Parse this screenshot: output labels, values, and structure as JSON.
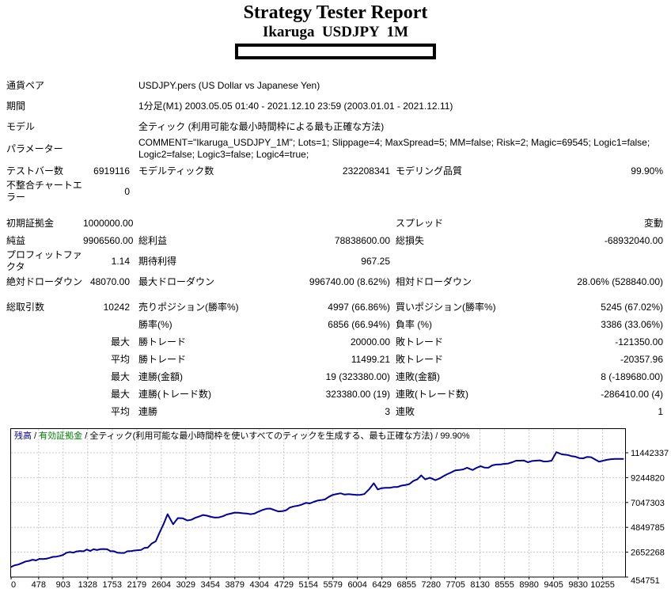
{
  "title": "Strategy Tester Report",
  "subtitle": "Ikaruga  USDJPY  1M",
  "table": {
    "info_rows": [
      {
        "label": "通貨ペア",
        "value": "USDJPY.pers (US Dollar vs Japanese Yen)"
      },
      {
        "label": "期間",
        "value": "1分足(M1) 2003.05.05 01:40 - 2021.12.10 23:59 (2003.01.01 - 2021.12.11)"
      },
      {
        "label": "モデル",
        "value": "全ティック (利用可能な最小時間枠による最も正確な方法)"
      },
      {
        "label": "パラメーター",
        "value": "COMMENT=\"Ikaruga_USDJPY_1M\"; Lots=1; Slippage=4; MaxSpread=5; MM=false; Risk=2; Magic=69545; Logic1=false; Logic2=false; Logic3=false; Logic4=true;"
      }
    ],
    "block1": [
      {
        "cells": [
          "テストバー数",
          "6919116",
          "モデルティック数",
          "232208341",
          "モデリング品質",
          "99.90%"
        ]
      },
      {
        "cells": [
          "不整合チャートエラー",
          "0",
          "",
          "",
          "",
          ""
        ]
      }
    ],
    "block2": [
      {
        "cells": [
          "初期証拠金",
          "1000000.00",
          "",
          "",
          "スプレッド",
          "変動"
        ]
      },
      {
        "cells": [
          "純益",
          "9906560.00",
          "総利益",
          "78838600.00",
          "総損失",
          "-68932040.00"
        ]
      },
      {
        "cells": [
          "プロフィットファクタ",
          "1.14",
          "期待利得",
          "967.25",
          "",
          ""
        ]
      },
      {
        "cells": [
          "絶対ドローダウン",
          "48070.00",
          "最大ドローダウン",
          "996740.00 (8.62%)",
          "相対ドローダウン",
          "28.06% (528840.00)"
        ]
      }
    ],
    "block3": [
      {
        "cells": [
          "総取引数",
          "10242",
          "売りポジション(勝率%)",
          "4997 (66.86%)",
          "買いポジション(勝率%)",
          "5245 (67.02%)"
        ]
      },
      {
        "cells": [
          "",
          "",
          "勝率(%)",
          "6856 (66.94%)",
          "負率 (%)",
          "3386 (33.06%)"
        ]
      },
      {
        "cells": [
          "",
          "最大",
          "勝トレード",
          "20000.00",
          "敗トレード",
          "-121350.00"
        ]
      },
      {
        "cells": [
          "",
          "平均",
          "勝トレード",
          "11499.21",
          "敗トレード",
          "-20357.96"
        ]
      },
      {
        "cells": [
          "",
          "最大",
          "連勝(金額)",
          "19 (323380.00)",
          "連敗(金額)",
          "8 (-189680.00)"
        ]
      },
      {
        "cells": [
          "",
          "最大",
          "連勝(トレード数)",
          "323380.00 (19)",
          "連敗(トレード数)",
          "-286410.00 (4)"
        ]
      },
      {
        "cells": [
          "",
          "平均",
          "連勝",
          "3",
          "連敗",
          "1"
        ]
      }
    ]
  },
  "chart_data": {
    "type": "line",
    "title": "残高 / 有効証拠金 / 全ティック(利用可能な最小時間枠を使いすべてのティックを生成する、最も正確な方法) / 99.90%",
    "header": {
      "balance_label": "残高",
      "equity_label": "有効証拠金",
      "model_label": "全ティック(利用可能な最小時間枠を使いすべてのティックを生成する、最も正確な方法)",
      "quality": "99.90%",
      "separator": " / "
    },
    "colors": {
      "balance_line": "#000099",
      "equity_label": "#008000",
      "grid": "#c9c9c9",
      "border": "#000000",
      "text": "#000000",
      "background": "#ffffff"
    },
    "xlabel": "",
    "ylabel": "",
    "x_ticks": [
      0,
      478,
      903,
      1328,
      1753,
      2179,
      2604,
      3029,
      3454,
      3879,
      4304,
      4729,
      5154,
      5579,
      6004,
      6429,
      6855,
      7280,
      7705,
      8130,
      8555,
      8980,
      9405,
      9830,
      10255
    ],
    "y_ticks": [
      454751,
      2652268,
      4849785,
      7047303,
      9244820,
      11442337
    ],
    "x_range": [
      0,
      10680
    ],
    "y_range": [
      454751,
      12150000
    ],
    "grid": true,
    "legend_position": "top-left-inline",
    "series": [
      {
        "name": "残高",
        "points": [
          [
            0,
            1350000
          ],
          [
            315,
            1890000
          ],
          [
            726,
            2240000
          ],
          [
            1137,
            2720000
          ],
          [
            1548,
            2920000
          ],
          [
            1959,
            2580000
          ],
          [
            2370,
            3060000
          ],
          [
            2507,
            3610000
          ],
          [
            2713,
            6010000
          ],
          [
            2809,
            5120000
          ],
          [
            2891,
            5670000
          ],
          [
            3055,
            5460000
          ],
          [
            3329,
            5940000
          ],
          [
            3603,
            5730000
          ],
          [
            3877,
            6150000
          ],
          [
            4151,
            6010000
          ],
          [
            4425,
            6490000
          ],
          [
            4699,
            6280000
          ],
          [
            4973,
            6760000
          ],
          [
            5247,
            7100000
          ],
          [
            5439,
            7310000
          ],
          [
            5576,
            7720000
          ],
          [
            5713,
            7860000
          ],
          [
            5850,
            7790000
          ],
          [
            5987,
            7720000
          ],
          [
            6124,
            7790000
          ],
          [
            6288,
            8750000
          ],
          [
            6357,
            8200000
          ],
          [
            6494,
            8340000
          ],
          [
            6631,
            8410000
          ],
          [
            6768,
            8540000
          ],
          [
            6905,
            8680000
          ],
          [
            7042,
            9090000
          ],
          [
            7110,
            9440000
          ],
          [
            7179,
            9090000
          ],
          [
            7261,
            9230000
          ],
          [
            7357,
            9020000
          ],
          [
            7494,
            9370000
          ],
          [
            7631,
            9710000
          ],
          [
            7768,
            9920000
          ],
          [
            7905,
            10120000
          ],
          [
            8001,
            9920000
          ],
          [
            8138,
            10260000
          ],
          [
            8275,
            10120000
          ],
          [
            8412,
            10400000
          ],
          [
            8549,
            10460000
          ],
          [
            8686,
            10600000
          ],
          [
            8823,
            10740000
          ],
          [
            8960,
            10600000
          ],
          [
            9097,
            10740000
          ],
          [
            9234,
            10670000
          ],
          [
            9371,
            10740000
          ],
          [
            9453,
            11500000
          ],
          [
            9549,
            11300000
          ],
          [
            9645,
            11250000
          ],
          [
            9782,
            11100000
          ],
          [
            9919,
            10950000
          ],
          [
            10056,
            11050000
          ],
          [
            10193,
            10650000
          ],
          [
            10330,
            10820000
          ],
          [
            10467,
            10900000
          ],
          [
            10610,
            10906560
          ]
        ]
      }
    ]
  }
}
